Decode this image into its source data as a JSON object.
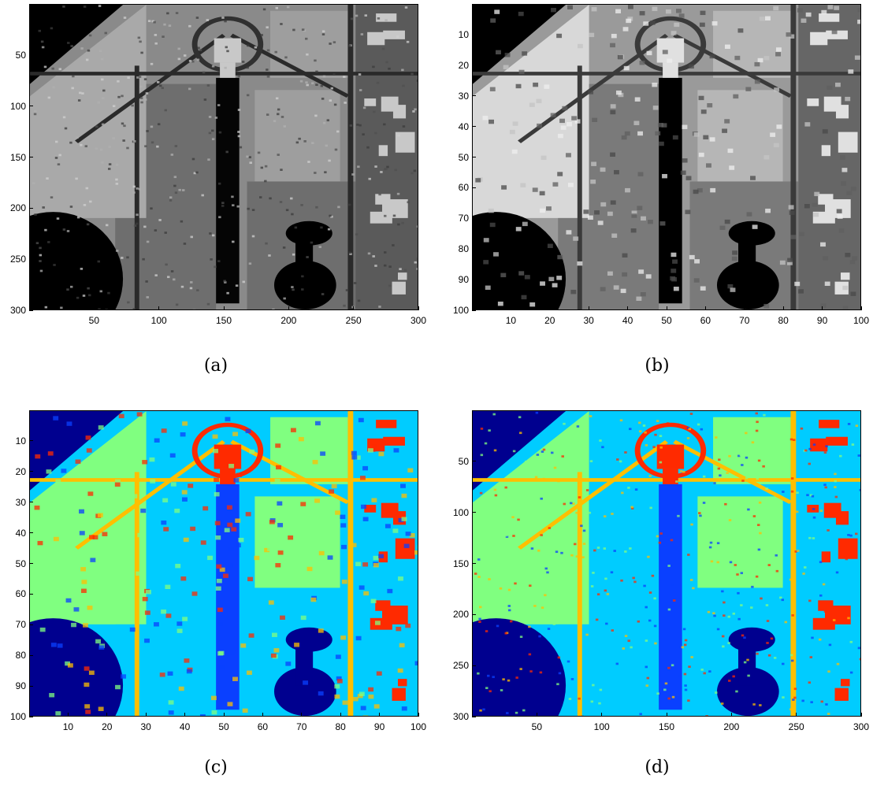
{
  "figure": {
    "panels": [
      {
        "id": "a",
        "caption": "(a)",
        "image_kind": "grayscale",
        "x_ticks": [
          "50",
          "100",
          "150",
          "200",
          "250",
          "300"
        ],
        "x_tick_values": [
          50,
          100,
          150,
          200,
          250,
          300
        ],
        "x_range": [
          0,
          300
        ],
        "y_ticks": [
          "50",
          "100",
          "150",
          "200",
          "250",
          "300"
        ],
        "y_tick_values": [
          50,
          100,
          150,
          200,
          250,
          300
        ],
        "y_range": [
          0,
          300
        ]
      },
      {
        "id": "b",
        "caption": "(b)",
        "image_kind": "grayscale",
        "x_ticks": [
          "10",
          "20",
          "30",
          "40",
          "50",
          "60",
          "70",
          "80",
          "90",
          "100"
        ],
        "x_tick_values": [
          10,
          20,
          30,
          40,
          50,
          60,
          70,
          80,
          90,
          100
        ],
        "x_range": [
          0,
          100
        ],
        "y_ticks": [
          "10",
          "20",
          "30",
          "40",
          "50",
          "60",
          "70",
          "80",
          "90",
          "100"
        ],
        "y_tick_values": [
          10,
          20,
          30,
          40,
          50,
          60,
          70,
          80,
          90,
          100
        ],
        "y_range": [
          0,
          100
        ]
      },
      {
        "id": "c",
        "caption": "(c)",
        "image_kind": "classification",
        "x_ticks": [
          "10",
          "20",
          "30",
          "40",
          "50",
          "60",
          "70",
          "80",
          "90",
          "100"
        ],
        "x_tick_values": [
          10,
          20,
          30,
          40,
          50,
          60,
          70,
          80,
          90,
          100
        ],
        "x_range": [
          0,
          100
        ],
        "y_ticks": [
          "10",
          "20",
          "30",
          "40",
          "50",
          "60",
          "70",
          "80",
          "90",
          "100"
        ],
        "y_tick_values": [
          10,
          20,
          30,
          40,
          50,
          60,
          70,
          80,
          90,
          100
        ],
        "y_range": [
          0,
          100
        ]
      },
      {
        "id": "d",
        "caption": "(d)",
        "image_kind": "classification",
        "x_ticks": [
          "50",
          "100",
          "150",
          "200",
          "250",
          "300"
        ],
        "x_tick_values": [
          50,
          100,
          150,
          200,
          250,
          300
        ],
        "x_range": [
          0,
          300
        ],
        "y_ticks": [
          "50",
          "100",
          "150",
          "200",
          "250",
          "300"
        ],
        "y_tick_values": [
          50,
          100,
          150,
          200,
          250,
          300
        ],
        "y_range": [
          0,
          300
        ]
      }
    ],
    "class_colors": {
      "water": "#00008f",
      "channel": "#0a40ff",
      "vegetation": "#00ccff",
      "grass": "#80ff80",
      "road": "#ffbf00",
      "building": "#ff2a00"
    }
  }
}
